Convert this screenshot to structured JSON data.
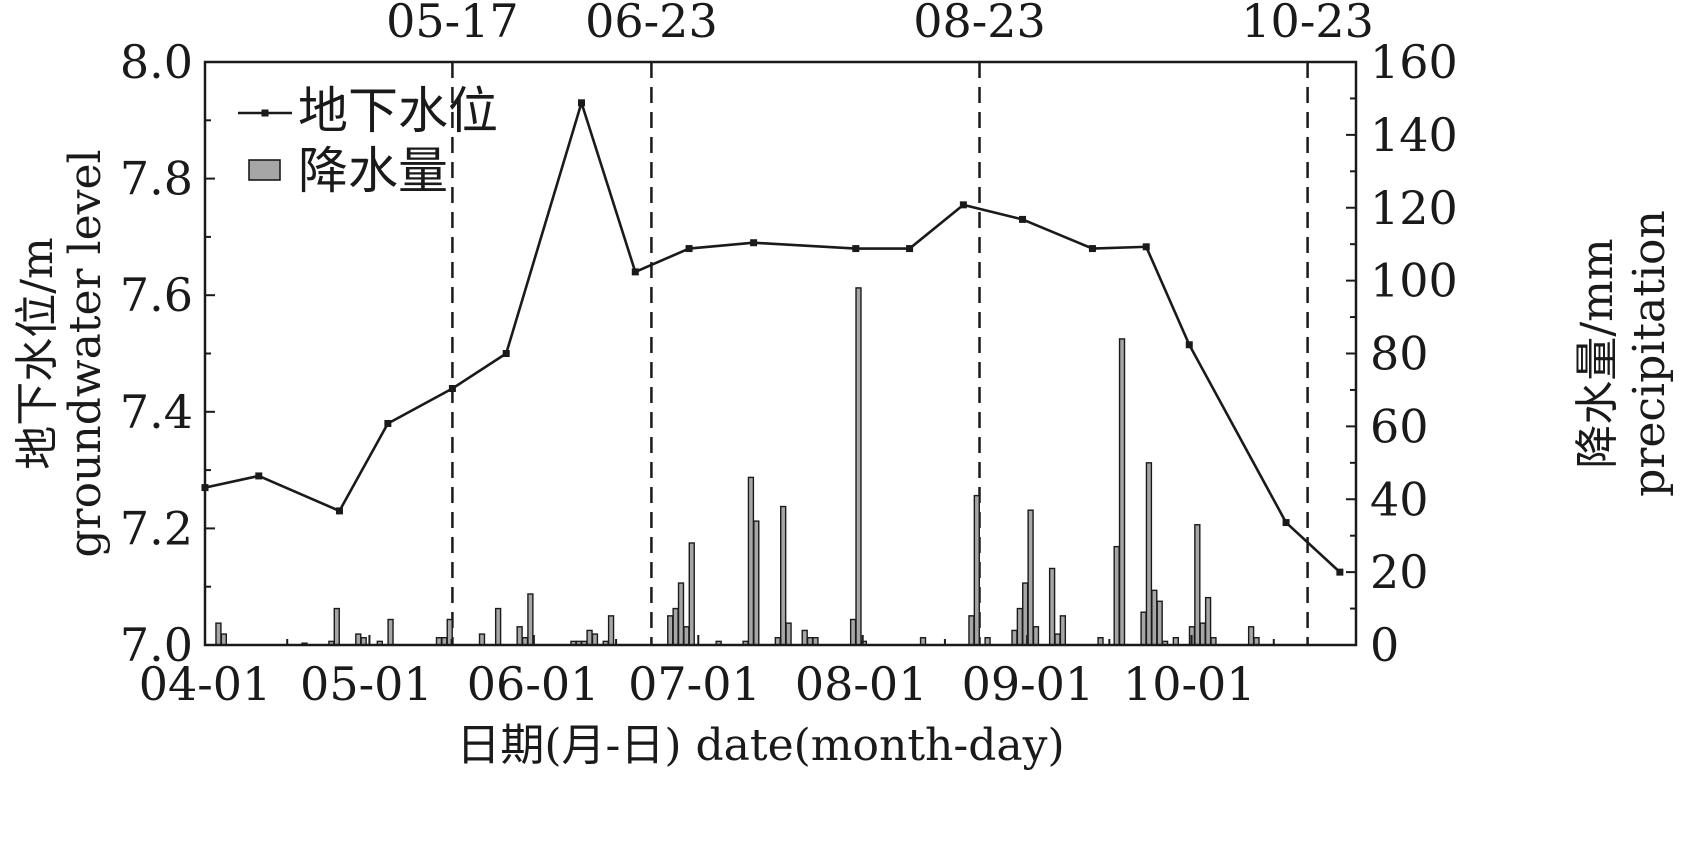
{
  "chart_data": {
    "type": "bar+line",
    "xlabel": "日期(月-日) date(month-day)",
    "ylabel_left": [
      "地下水位/m",
      "groundwater level"
    ],
    "ylabel_right": [
      "降水量/mm",
      "precipitation"
    ],
    "x_range": [
      "04-01",
      "10-31"
    ],
    "x_ticks": [
      "04-01",
      "05-01",
      "06-01",
      "07-01",
      "08-01",
      "09-01",
      "10-01"
    ],
    "y_left_range": [
      7.0,
      8.0
    ],
    "y_left_ticks": [
      "7.0",
      "7.2",
      "7.4",
      "7.6",
      "7.8",
      "8.0"
    ],
    "y_right_range": [
      0,
      160
    ],
    "y_right_ticks": [
      "0",
      "20",
      "40",
      "60",
      "80",
      "100",
      "120",
      "140",
      "160"
    ],
    "vlines": [
      "05-17",
      "06-23",
      "08-23",
      "10-23"
    ],
    "legend": {
      "position": "top-left",
      "line_label": "地下水位",
      "bar_label": "降水量"
    },
    "series": [
      {
        "name": "地下水位",
        "kind": "line",
        "axis": "left",
        "points": [
          {
            "x": "04-01",
            "y": 7.27
          },
          {
            "x": "04-11",
            "y": 7.29
          },
          {
            "x": "04-26",
            "y": 7.23
          },
          {
            "x": "05-05",
            "y": 7.38
          },
          {
            "x": "05-17",
            "y": 7.44
          },
          {
            "x": "05-27",
            "y": 7.5
          },
          {
            "x": "06-10",
            "y": 7.93
          },
          {
            "x": "06-20",
            "y": 7.64
          },
          {
            "x": "06-30",
            "y": 7.68
          },
          {
            "x": "07-12",
            "y": 7.69
          },
          {
            "x": "07-31",
            "y": 7.68
          },
          {
            "x": "08-10",
            "y": 7.68
          },
          {
            "x": "08-20",
            "y": 7.755
          },
          {
            "x": "08-31",
            "y": 7.73
          },
          {
            "x": "09-13",
            "y": 7.68
          },
          {
            "x": "09-23",
            "y": 7.683
          },
          {
            "x": "10-01",
            "y": 7.515
          },
          {
            "x": "10-19",
            "y": 7.21
          },
          {
            "x": "10-29",
            "y": 7.125
          }
        ]
      },
      {
        "name": "降水量",
        "kind": "bar",
        "axis": "right",
        "bars": [
          {
            "x": "04-03",
            "v": 6
          },
          {
            "x": "04-04",
            "v": 3
          },
          {
            "x": "04-19",
            "v": 0.5
          },
          {
            "x": "04-24",
            "v": 1
          },
          {
            "x": "04-25",
            "v": 10
          },
          {
            "x": "04-29",
            "v": 3
          },
          {
            "x": "04-30",
            "v": 2
          },
          {
            "x": "05-03",
            "v": 1
          },
          {
            "x": "05-05",
            "v": 7
          },
          {
            "x": "05-14",
            "v": 2
          },
          {
            "x": "05-15",
            "v": 2
          },
          {
            "x": "05-16",
            "v": 7
          },
          {
            "x": "05-22",
            "v": 3
          },
          {
            "x": "05-25",
            "v": 10
          },
          {
            "x": "05-29",
            "v": 5
          },
          {
            "x": "05-30",
            "v": 2
          },
          {
            "x": "05-31",
            "v": 14
          },
          {
            "x": "06-08",
            "v": 1
          },
          {
            "x": "06-09",
            "v": 1
          },
          {
            "x": "06-10",
            "v": 1
          },
          {
            "x": "06-11",
            "v": 4
          },
          {
            "x": "06-12",
            "v": 3
          },
          {
            "x": "06-14",
            "v": 1
          },
          {
            "x": "06-15",
            "v": 8
          },
          {
            "x": "06-26",
            "v": 8
          },
          {
            "x": "06-27",
            "v": 10
          },
          {
            "x": "06-28",
            "v": 17
          },
          {
            "x": "06-29",
            "v": 5
          },
          {
            "x": "06-30",
            "v": 28
          },
          {
            "x": "07-05",
            "v": 1
          },
          {
            "x": "07-10",
            "v": 1
          },
          {
            "x": "07-11",
            "v": 46
          },
          {
            "x": "07-12",
            "v": 34
          },
          {
            "x": "07-16",
            "v": 2
          },
          {
            "x": "07-17",
            "v": 38
          },
          {
            "x": "07-18",
            "v": 6
          },
          {
            "x": "07-21",
            "v": 4
          },
          {
            "x": "07-22",
            "v": 2
          },
          {
            "x": "07-23",
            "v": 2
          },
          {
            "x": "07-30",
            "v": 7
          },
          {
            "x": "07-31",
            "v": 98
          },
          {
            "x": "08-01",
            "v": 1
          },
          {
            "x": "08-12",
            "v": 2
          },
          {
            "x": "08-21",
            "v": 8
          },
          {
            "x": "08-22",
            "v": 41
          },
          {
            "x": "08-24",
            "v": 2
          },
          {
            "x": "08-29",
            "v": 4
          },
          {
            "x": "08-30",
            "v": 10
          },
          {
            "x": "08-31",
            "v": 17
          },
          {
            "x": "09-01",
            "v": 37
          },
          {
            "x": "09-02",
            "v": 5
          },
          {
            "x": "09-05",
            "v": 21
          },
          {
            "x": "09-06",
            "v": 3
          },
          {
            "x": "09-07",
            "v": 8
          },
          {
            "x": "09-14",
            "v": 2
          },
          {
            "x": "09-17",
            "v": 27
          },
          {
            "x": "09-18",
            "v": 84
          },
          {
            "x": "09-22",
            "v": 9
          },
          {
            "x": "09-23",
            "v": 50
          },
          {
            "x": "09-24",
            "v": 15
          },
          {
            "x": "09-25",
            "v": 12
          },
          {
            "x": "09-26",
            "v": 1
          },
          {
            "x": "09-28",
            "v": 2
          },
          {
            "x": "10-01",
            "v": 5
          },
          {
            "x": "10-02",
            "v": 33
          },
          {
            "x": "10-03",
            "v": 6
          },
          {
            "x": "10-04",
            "v": 13
          },
          {
            "x": "10-05",
            "v": 2
          },
          {
            "x": "10-12",
            "v": 5
          },
          {
            "x": "10-13",
            "v": 2
          }
        ]
      }
    ]
  }
}
